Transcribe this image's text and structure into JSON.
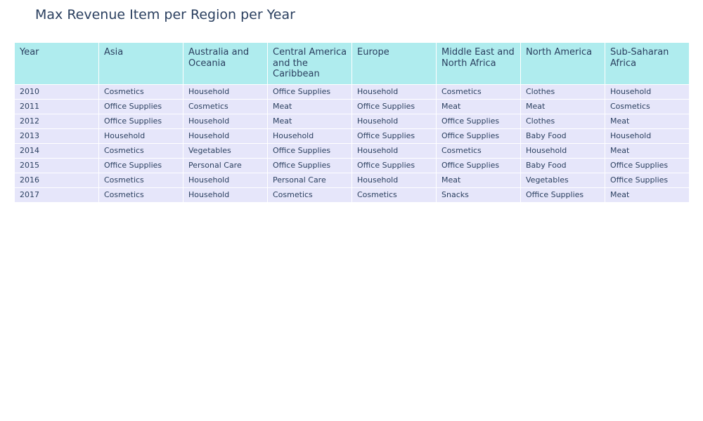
{
  "colors": {
    "header_fill": "#afecee",
    "cell_fill": "#e6e6fa",
    "text": "#2a3f5f"
  },
  "chart_data": {
    "type": "table",
    "title": "Max Revenue Item per Region per Year",
    "columns": [
      "Year",
      "Asia",
      "Australia and Oceania",
      "Central America and the Caribbean",
      "Europe",
      "Middle East and North Africa",
      "North America",
      "Sub-Saharan Africa"
    ],
    "rows": [
      [
        "2010",
        "Cosmetics",
        "Household",
        "Office Supplies",
        "Household",
        "Cosmetics",
        "Clothes",
        "Household"
      ],
      [
        "2011",
        "Office Supplies",
        "Cosmetics",
        "Meat",
        "Office Supplies",
        "Meat",
        "Meat",
        "Cosmetics"
      ],
      [
        "2012",
        "Office Supplies",
        "Household",
        "Meat",
        "Household",
        "Office Supplies",
        "Clothes",
        "Meat"
      ],
      [
        "2013",
        "Household",
        "Household",
        "Household",
        "Office Supplies",
        "Office Supplies",
        "Baby Food",
        "Household"
      ],
      [
        "2014",
        "Cosmetics",
        "Vegetables",
        "Office Supplies",
        "Household",
        "Cosmetics",
        "Household",
        "Meat"
      ],
      [
        "2015",
        "Office Supplies",
        "Personal Care",
        "Office Supplies",
        "Office Supplies",
        "Office Supplies",
        "Baby Food",
        "Office Supplies"
      ],
      [
        "2016",
        "Cosmetics",
        "Household",
        "Personal Care",
        "Household",
        "Meat",
        "Vegetables",
        "Office Supplies"
      ],
      [
        "2017",
        "Cosmetics",
        "Household",
        "Cosmetics",
        "Cosmetics",
        "Snacks",
        "Office Supplies",
        "Meat"
      ]
    ]
  }
}
